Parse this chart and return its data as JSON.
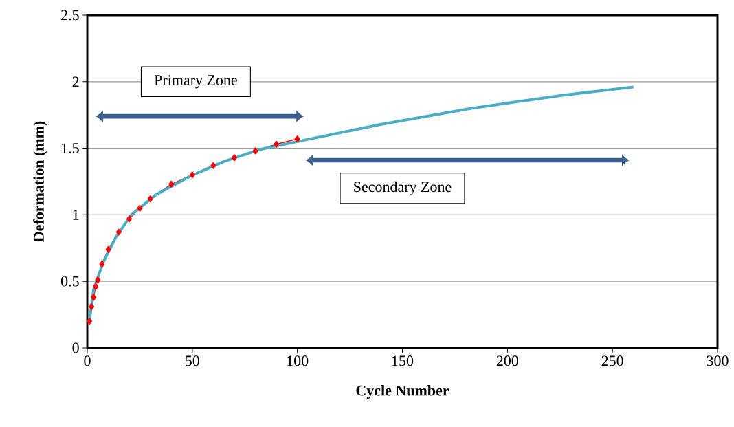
{
  "chart_data": {
    "type": "line",
    "xlabel": "Cycle Number",
    "ylabel": "Deformation (mm)",
    "xlim": [
      0,
      300
    ],
    "xticks": [
      0,
      50,
      100,
      150,
      200,
      250,
      300
    ],
    "ylim": [
      0,
      2.5
    ],
    "yticks": [
      0,
      0.5,
      1,
      1.5,
      2,
      2.5
    ],
    "grid": "y",
    "series": [
      {
        "color": "#ff0000",
        "marker": "diamond",
        "x": [
          1,
          2,
          3,
          4,
          5,
          7,
          10,
          15,
          20,
          25,
          30,
          40,
          50,
          60,
          70,
          80,
          90,
          100
        ],
        "values": [
          0.2,
          0.31,
          0.38,
          0.46,
          0.51,
          0.63,
          0.74,
          0.87,
          0.97,
          1.05,
          1.12,
          1.23,
          1.3,
          1.37,
          1.43,
          1.48,
          1.53,
          1.57
        ]
      },
      {
        "color": "#4bacc6",
        "marker": "none",
        "x": [
          1,
          3,
          7.5,
          13.5,
          21,
          32.6,
          49,
          65,
          82,
          100,
          140,
          183,
          227,
          260
        ],
        "values": [
          0.2,
          0.44,
          0.64,
          0.83,
          1.0,
          1.15,
          1.29,
          1.4,
          1.49,
          1.55,
          1.68,
          1.8,
          1.9,
          1.96
        ]
      }
    ],
    "annotations": [
      "Primary Zone",
      "Secondary Zone"
    ]
  }
}
